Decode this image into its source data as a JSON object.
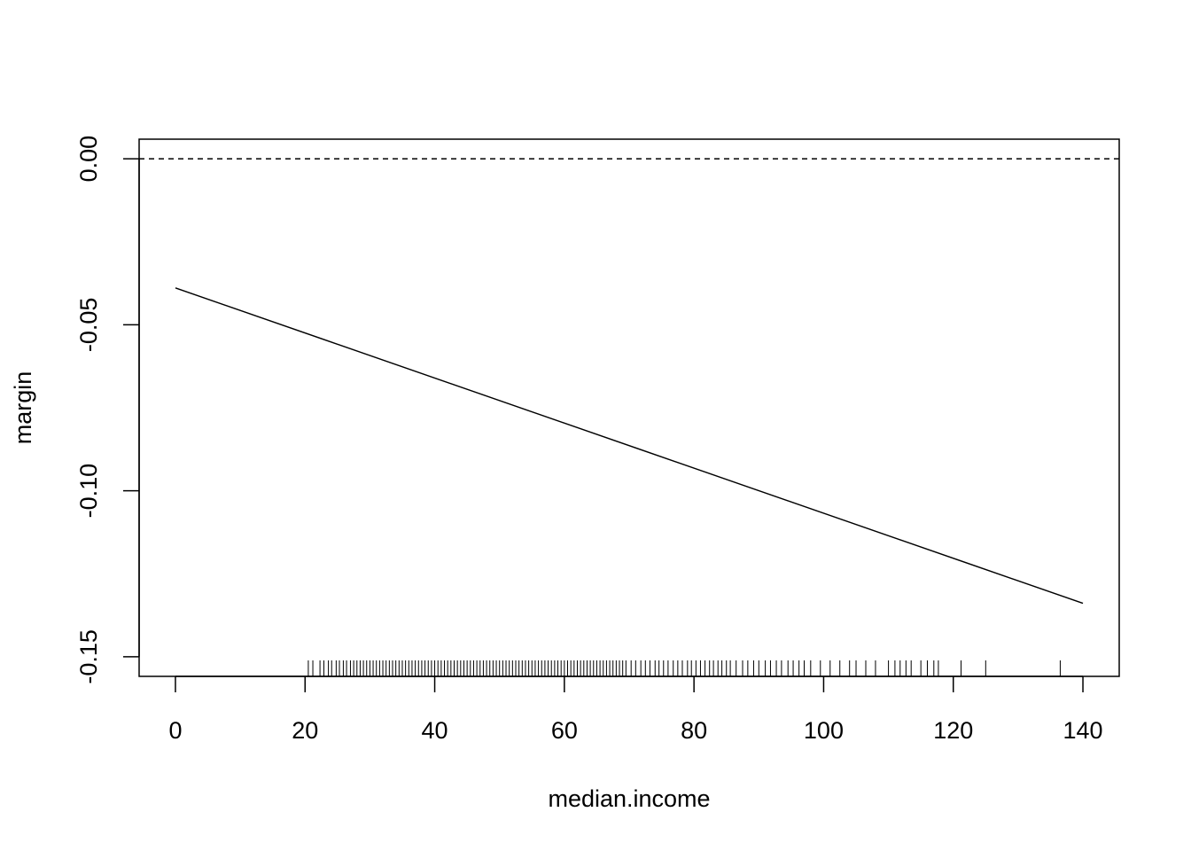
{
  "chart_data": {
    "type": "line",
    "x_label": "median.income",
    "y_label": "margin",
    "x": [
      0,
      140
    ],
    "series": [
      {
        "values": [
          -0.0389,
          -0.1339
        ],
        "color": "#000000"
      }
    ],
    "hline": 0,
    "rug": [
      20.5,
      21.2,
      22.3,
      22.9,
      23.6,
      24.1,
      24.8,
      25.3,
      25.9,
      26.4,
      27,
      27.5,
      28,
      28.5,
      29,
      29.5,
      30,
      30.5,
      31,
      31.5,
      32,
      32.5,
      33,
      33.5,
      34,
      34.5,
      35,
      35.5,
      36,
      36.5,
      37,
      37.5,
      38,
      38.5,
      39,
      39.5,
      40,
      40.5,
      41,
      41.5,
      42,
      42.5,
      43,
      43.5,
      44,
      44.5,
      45,
      45.5,
      46,
      46.5,
      47,
      47.5,
      48,
      48.5,
      49,
      49.5,
      50,
      50.5,
      51,
      51.5,
      52,
      52.5,
      53,
      53.5,
      54,
      54.5,
      55,
      55.5,
      56,
      56.5,
      57,
      57.5,
      58,
      58.5,
      59,
      59.5,
      60,
      60.5,
      61,
      61.5,
      62,
      62.5,
      63,
      63.5,
      64,
      64.5,
      65,
      65.5,
      66,
      66.5,
      67,
      67.5,
      68,
      68.5,
      69,
      69.5,
      70.3,
      71,
      71.8,
      72.5,
      73.2,
      74,
      74.6,
      75.3,
      76,
      76.8,
      77.5,
      78.2,
      79,
      79.6,
      80.3,
      81,
      81.7,
      82.4,
      83,
      83.7,
      84.3,
      85,
      85.6,
      86.5,
      87.5,
      88.3,
      89.2,
      90,
      91,
      91.8,
      92.7,
      93.5,
      94.5,
      95.3,
      96.2,
      97,
      98,
      99.5,
      101,
      102.5,
      104,
      105,
      106.5,
      108,
      110,
      111,
      111.8,
      112.7,
      113.5,
      115,
      116,
      117,
      117.7,
      121.2,
      125,
      136.5
    ],
    "xlim": [
      -5.6,
      145.6
    ],
    "ylim": [
      -0.1559,
      0.0059
    ],
    "xticks": [
      0,
      20,
      40,
      60,
      80,
      100,
      120,
      140
    ],
    "yticks": [
      -0.15,
      {
        "value": -0.1,
        "label": "-0.10"
      },
      -0.05,
      {
        "value": 0,
        "label": "0.00"
      }
    ]
  }
}
